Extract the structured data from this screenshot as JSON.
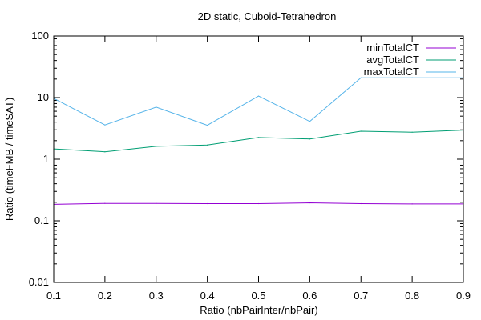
{
  "chart_data": {
    "type": "line",
    "title": "2D static, Cuboid-Tetrahedron",
    "xlabel": "Ratio (nbPairInter/nbPair)",
    "ylabel": "Ratio (timeFMB / timeSAT)",
    "x": [
      0.1,
      0.2,
      0.3,
      0.4,
      0.5,
      0.6,
      0.7,
      0.8,
      0.9
    ],
    "x_ticks": [
      "0.1",
      "0.2",
      "0.3",
      "0.4",
      "0.5",
      "0.6",
      "0.7",
      "0.8",
      "0.9"
    ],
    "y_scale": "log",
    "y_ticks": [
      "0.01",
      "0.1",
      "1",
      "10",
      "100"
    ],
    "xlim": [
      0.1,
      0.9
    ],
    "ylim": [
      0.01,
      100
    ],
    "grid": false,
    "legend_position": "top-right",
    "series": [
      {
        "name": "minTotalCT",
        "color": "#9400d3",
        "values": [
          0.185,
          0.192,
          0.192,
          0.19,
          0.19,
          0.196,
          0.19,
          0.188,
          0.188
        ]
      },
      {
        "name": "avgTotalCT",
        "color": "#009e73",
        "values": [
          1.47,
          1.32,
          1.62,
          1.7,
          2.25,
          2.13,
          2.85,
          2.75,
          2.97
        ]
      },
      {
        "name": "maxTotalCT",
        "color": "#56b4e9",
        "values": [
          9.7,
          3.6,
          7.0,
          3.55,
          10.6,
          4.1,
          21.0,
          21.0,
          21.0
        ]
      }
    ]
  }
}
